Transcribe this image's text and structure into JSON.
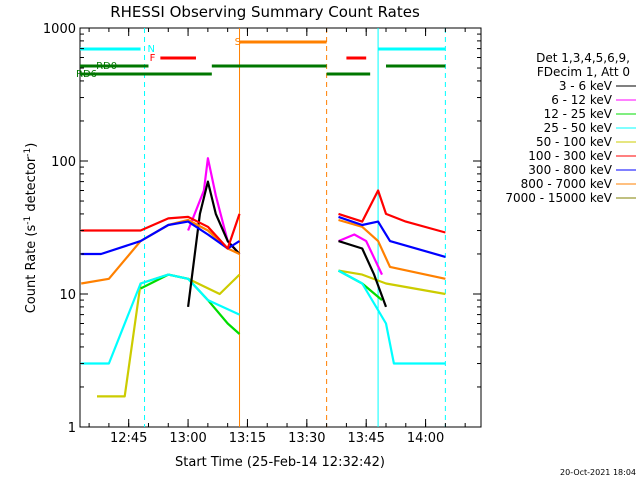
{
  "chart_data": {
    "type": "line",
    "title": "RHESSI Observing Summary Count Rates",
    "xlabel": "Start Time (25-Feb-14 12:32:42)",
    "ylabel_main": "Count Rate (s",
    "ylabel_sup1": "-1",
    "ylabel_mid": " detector",
    "ylabel_sup2": "-1",
    "ylabel_end": ")",
    "yscale": "log",
    "xlim": [
      "12:32:42",
      "14:14:00"
    ],
    "ylim": [
      1,
      1000
    ],
    "x_ticks": [
      "12:45",
      "13:00",
      "13:15",
      "13:30",
      "13:45",
      "14:00"
    ],
    "y_ticks": [
      "1",
      "10",
      "100",
      "1000"
    ],
    "legend_header": [
      "Det 1,3,4,5,6,9,",
      "FDecim 1, Att 0"
    ],
    "legend_position": "right",
    "series": [
      {
        "name": "3 - 6 keV",
        "color": "#000000",
        "points": [
          [
            "13:00",
            8
          ],
          [
            "13:03",
            40
          ],
          [
            "13:05",
            70
          ],
          [
            "13:07",
            40
          ],
          [
            "13:10",
            25
          ],
          [
            "13:13",
            20
          ],
          [
            "13:38",
            25
          ],
          [
            "13:44",
            22
          ],
          [
            "13:47",
            14
          ],
          [
            "13:50",
            8
          ]
        ]
      },
      {
        "name": "6 - 12 keV",
        "color": "#ff00ff",
        "points": [
          [
            "13:00",
            30
          ],
          [
            "13:04",
            60
          ],
          [
            "13:05",
            105
          ],
          [
            "13:07",
            55
          ],
          [
            "13:10",
            25
          ],
          [
            "13:13",
            20
          ],
          [
            "13:38",
            25
          ],
          [
            "13:42",
            28
          ],
          [
            "13:45",
            25
          ],
          [
            "13:49",
            14
          ]
        ]
      },
      {
        "name": "12 - 25 keV",
        "color": "#00dd00",
        "points": [
          [
            "12:48",
            11
          ],
          [
            "12:55",
            14
          ],
          [
            "13:00",
            13
          ],
          [
            "13:05",
            9
          ],
          [
            "13:10",
            6
          ],
          [
            "13:13",
            5
          ],
          [
            "13:38",
            15
          ],
          [
            "13:44",
            12
          ],
          [
            "13:49",
            9
          ]
        ]
      },
      {
        "name": "25 - 50 keV",
        "color": "#00ffff",
        "points": [
          [
            "12:33",
            3
          ],
          [
            "12:40",
            3
          ],
          [
            "12:48",
            12
          ],
          [
            "12:55",
            14
          ],
          [
            "13:00",
            13
          ],
          [
            "13:05",
            9
          ],
          [
            "13:13",
            7
          ],
          [
            "13:38",
            15
          ],
          [
            "13:44",
            12
          ],
          [
            "13:50",
            6
          ],
          [
            "13:52",
            3
          ],
          [
            "14:05",
            3
          ]
        ]
      },
      {
        "name": "50 - 100 keV",
        "color": "#cccc00",
        "points": [
          [
            "12:37",
            1.7
          ],
          [
            "12:44",
            1.7
          ],
          [
            "12:48",
            12
          ],
          [
            "12:55",
            14
          ],
          [
            "13:00",
            13
          ],
          [
            "13:08",
            10
          ],
          [
            "13:13",
            14
          ],
          [
            "13:38",
            15
          ],
          [
            "13:44",
            14
          ],
          [
            "13:50",
            12
          ],
          [
            "14:05",
            10
          ]
        ]
      },
      {
        "name": "100 - 300 keV",
        "color": "#ff0000",
        "points": [
          [
            "12:33",
            30
          ],
          [
            "12:38",
            30
          ],
          [
            "12:48",
            30
          ],
          [
            "12:55",
            37
          ],
          [
            "13:00",
            38
          ],
          [
            "13:05",
            32
          ],
          [
            "13:10",
            22
          ],
          [
            "13:13",
            40
          ],
          [
            "13:38",
            40
          ],
          [
            "13:44",
            35
          ],
          [
            "13:48",
            60
          ],
          [
            "13:50",
            40
          ],
          [
            "13:55",
            35
          ],
          [
            "14:05",
            29
          ]
        ]
      },
      {
        "name": "300 - 800 keV",
        "color": "#0000ff",
        "points": [
          [
            "12:33",
            20
          ],
          [
            "12:38",
            20
          ],
          [
            "12:48",
            25
          ],
          [
            "12:55",
            33
          ],
          [
            "13:00",
            35
          ],
          [
            "13:05",
            28
          ],
          [
            "13:10",
            22
          ],
          [
            "13:13",
            25
          ],
          [
            "13:38",
            38
          ],
          [
            "13:44",
            33
          ],
          [
            "13:48",
            35
          ],
          [
            "13:51",
            25
          ],
          [
            "14:05",
            19
          ]
        ]
      },
      {
        "name": "800 - 7000 keV",
        "color": "#ff8000",
        "points": [
          [
            "12:33",
            12
          ],
          [
            "12:40",
            13
          ],
          [
            "12:48",
            25
          ],
          [
            "12:55",
            33
          ],
          [
            "13:00",
            36
          ],
          [
            "13:05",
            30
          ],
          [
            "13:10",
            22
          ],
          [
            "13:13",
            20
          ],
          [
            "13:38",
            36
          ],
          [
            "13:44",
            32
          ],
          [
            "13:48",
            25
          ],
          [
            "13:51",
            16
          ],
          [
            "14:05",
            13
          ]
        ]
      },
      {
        "name": "7000 - 15000 keV",
        "color": "#808000",
        "points": []
      }
    ],
    "flag_bars": [
      {
        "label": "N",
        "color": "#00ffff",
        "segments": [
          [
            "12:32:42",
            "12:48"
          ],
          [
            "13:48",
            "14:05"
          ]
        ],
        "label_at": "12:49"
      },
      {
        "label": "F",
        "color": "#ff0000",
        "segments": [
          [
            "12:53",
            "13:02"
          ],
          [
            "13:40",
            "13:45"
          ]
        ],
        "label_at": "12:51"
      },
      {
        "label": "S",
        "color": "#ff8000",
        "segments": [
          [
            "13:13",
            "13:35"
          ]
        ],
        "label_at": "13:11"
      },
      {
        "label": "RD0",
        "color": "#007700",
        "segments": [
          [
            "12:32:42",
            "12:50"
          ],
          [
            "13:06",
            "13:35"
          ],
          [
            "13:50",
            "14:05"
          ]
        ],
        "label_at": "12:36"
      },
      {
        "label": "RD6",
        "color": "#007700",
        "segments": [
          [
            "12:32:42",
            "13:06"
          ],
          [
            "13:35",
            "13:46"
          ]
        ],
        "label_at": "12:32:42"
      }
    ],
    "vertical_markers": [
      {
        "x": "12:49",
        "color": "#00ffff",
        "style": "dashed"
      },
      {
        "x": "13:13",
        "color": "#ff8000",
        "style": "solid"
      },
      {
        "x": "13:35",
        "color": "#ff8000",
        "style": "dashed"
      },
      {
        "x": "13:48",
        "color": "#00ffff",
        "style": "solid"
      },
      {
        "x": "14:05",
        "color": "#00ffff",
        "style": "dashed"
      }
    ],
    "footer_date": "20-Oct-2021 18:04"
  }
}
